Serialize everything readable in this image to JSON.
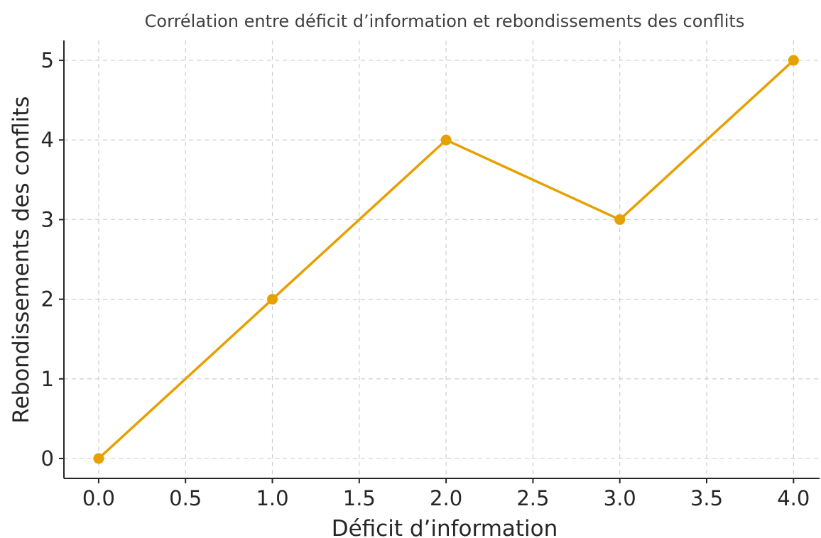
{
  "chart_data": {
    "type": "line",
    "title": "Corrélation entre déficit d’information et rebondissements des conflits",
    "xlabel": "Déficit d’information",
    "ylabel": "Rebondissements des conflits",
    "x": [
      0,
      1,
      2,
      3,
      4
    ],
    "series": [
      {
        "values": [
          0,
          2,
          4,
          3,
          5
        ],
        "color": "#E6A000"
      }
    ],
    "xlim": [
      -0.2,
      4.15
    ],
    "ylim": [
      -0.25,
      5.25
    ],
    "xticks": [
      "0.0",
      "0.5",
      "1.0",
      "1.5",
      "2.0",
      "2.5",
      "3.0",
      "3.5",
      "4.0"
    ],
    "yticks": [
      "0",
      "1",
      "2",
      "3",
      "4",
      "5"
    ],
    "grid": true,
    "legend": "none",
    "marker": "circle"
  }
}
